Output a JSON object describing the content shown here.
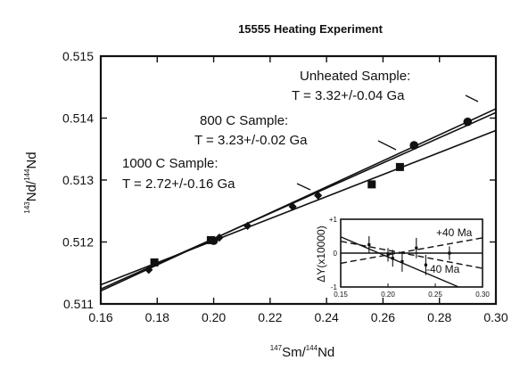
{
  "chart_data": [
    {
      "type": "scatter",
      "title": "15555 Heating Experiment",
      "xlabel": {
        "sup1": "147",
        "base1": "Sm/",
        "sup2": "144",
        "base2": "Nd"
      },
      "ylabel": {
        "sup1": "143",
        "base1": "Nd/",
        "sup2": "144",
        "base2": "Nd"
      },
      "xlim": [
        0.16,
        0.3
      ],
      "ylim": [
        0.511,
        0.515
      ],
      "x_ticks": [
        "0.16",
        "0.18",
        "0.20",
        "0.22",
        "0.24",
        "0.26",
        "0.28",
        "0.30"
      ],
      "y_ticks": [
        "0.511",
        "0.512",
        "0.513",
        "0.514",
        "0.515"
      ],
      "grid": false,
      "annotations": [
        {
          "series": "unheated",
          "line1": "Unheated Sample:",
          "line2": "T = 3.32+/-0.04 Ga"
        },
        {
          "series": "800c",
          "line1": "800 C Sample:",
          "line2": "T = 3.23+/-0.02 Ga"
        },
        {
          "series": "1000c",
          "line1": "1000 C Sample:",
          "line2": "T = 2.72+/-0.16 Ga"
        }
      ],
      "series": [
        {
          "id": "unheated",
          "marker": "circle",
          "points": [
            [
              0.2,
              0.51202
            ],
            [
              0.271,
              0.51356
            ],
            [
              0.29,
              0.51394
            ]
          ],
          "fit_line": [
            [
              0.16,
              0.51121
            ],
            [
              0.3,
              0.51415
            ]
          ]
        },
        {
          "id": "800c",
          "marker": "diamond",
          "points": [
            [
              0.177,
              0.51155
            ],
            [
              0.202,
              0.51207
            ],
            [
              0.212,
              0.51226
            ],
            [
              0.228,
              0.51257
            ],
            [
              0.237,
              0.51275
            ]
          ],
          "fit_line": [
            [
              0.16,
              0.51124
            ],
            [
              0.3,
              0.51409
            ]
          ]
        },
        {
          "id": "1000c",
          "marker": "square",
          "points": [
            [
              0.179,
              0.51167
            ],
            [
              0.199,
              0.51203
            ],
            [
              0.256,
              0.51293
            ],
            [
              0.266,
              0.51321
            ]
          ],
          "fit_line": [
            [
              0.16,
              0.51131
            ],
            [
              0.3,
              0.5138
            ]
          ]
        }
      ]
    },
    {
      "type": "line",
      "inset": true,
      "ylabel": "ΔY(x10000)",
      "xlim": [
        0.15,
        0.3
      ],
      "ylim": [
        -1,
        1
      ],
      "x_ticks": [
        "0.15",
        "0.20",
        "0.25",
        "0.30"
      ],
      "y_ticks": [
        "+1",
        "0",
        "-1"
      ],
      "reference_lines": [
        {
          "label": "+40 Ma",
          "y_at_xmin": -0.3,
          "y_at_xmax": 0.45,
          "style": "dashed"
        },
        {
          "label": "-40 Ma",
          "y_at_xmin": 0.35,
          "y_at_xmax": -0.45,
          "style": "dashed"
        }
      ],
      "fit_line": {
        "y_at_xmin": 0.48,
        "y_at_xmax": -1.3
      },
      "points": [
        {
          "x": 0.18,
          "y": 0.25,
          "err": 0.25
        },
        {
          "x": 0.2,
          "y": -0.05,
          "err": 0.2
        },
        {
          "x": 0.205,
          "y": -0.15,
          "err": 0.25
        },
        {
          "x": 0.215,
          "y": -0.25,
          "err": 0.3
        },
        {
          "x": 0.23,
          "y": 0.15,
          "err": 0.3
        },
        {
          "x": 0.24,
          "y": -0.35,
          "err": 0.3
        },
        {
          "x": 0.265,
          "y": 0.0,
          "err": 0.2
        }
      ]
    }
  ]
}
